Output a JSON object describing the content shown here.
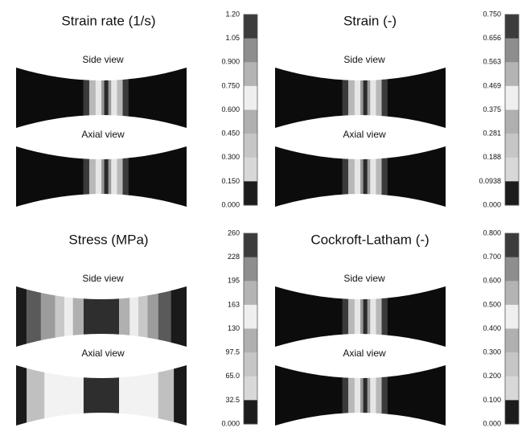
{
  "panels": [
    {
      "title": "Strain rate (1/s)",
      "side_label": "Side view",
      "axial_label": "Axial view",
      "scale": [
        "1.20",
        "1.05",
        "0.900",
        "0.750",
        "0.600",
        "0.450",
        "0.300",
        "0.150",
        "0.000"
      ]
    },
    {
      "title": "Strain (-)",
      "side_label": "Side view",
      "axial_label": "Axial view",
      "scale": [
        "0.750",
        "0.656",
        "0.563",
        "0.469",
        "0.375",
        "0.281",
        "0.188",
        "0.0938",
        "0.000"
      ]
    },
    {
      "title": "Stress (MPa)",
      "side_label": "Side view",
      "axial_label": "Axial view",
      "scale": [
        "260",
        "228",
        "195",
        "163",
        "130",
        "97.5",
        "65.0",
        "32.5",
        "0.000"
      ]
    },
    {
      "title": "Cockroft-Latham (-)",
      "side_label": "Side view",
      "axial_label": "Axial view",
      "scale": [
        "0.800",
        "0.700",
        "0.600",
        "0.500",
        "0.400",
        "0.300",
        "0.200",
        "0.100",
        "0.000"
      ]
    }
  ]
}
